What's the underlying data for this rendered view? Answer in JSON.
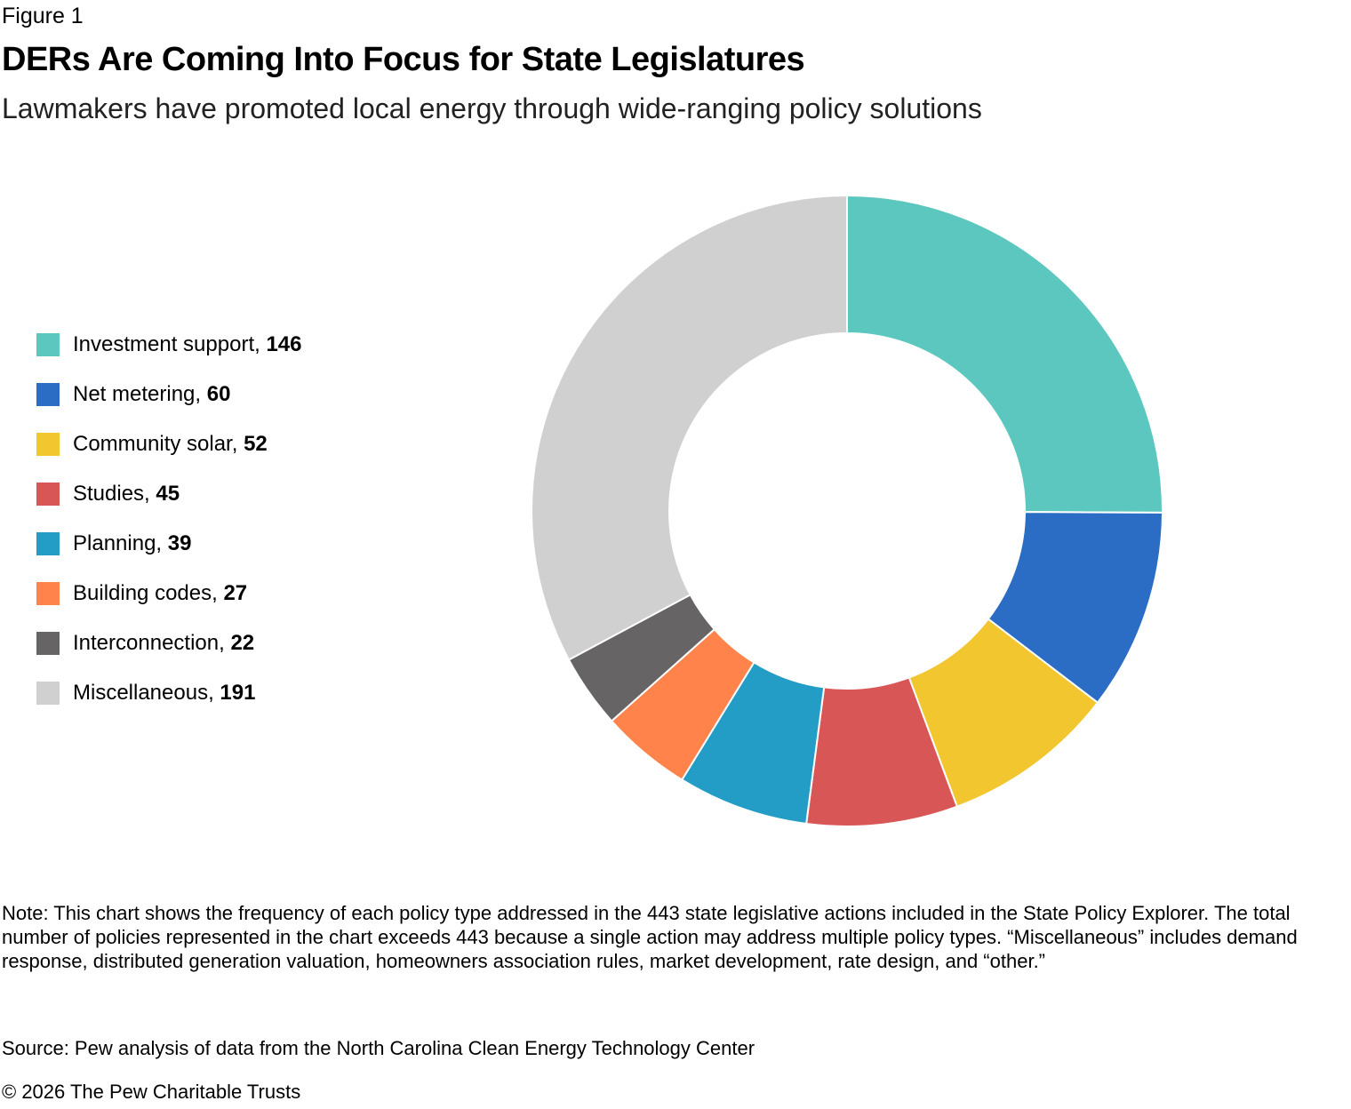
{
  "figure_label": "Figure 1",
  "chart_data": {
    "type": "pie",
    "donut": true,
    "title": "DERs Are Coming Into Focus for State Legislatures",
    "subtitle": "Lawmakers have promoted local energy through wide-ranging policy solutions",
    "legend_position": "left",
    "categories": [
      "Investment support",
      "Net metering",
      "Community solar",
      "Studies",
      "Planning",
      "Building codes",
      "Interconnection",
      "Miscellaneous"
    ],
    "values": [
      146,
      60,
      52,
      45,
      39,
      27,
      22,
      191
    ],
    "colors": [
      "#5BC7BE",
      "#2B6CC4",
      "#F2C62F",
      "#D95656",
      "#239DC6",
      "#FF834A",
      "#666465",
      "#D0D0D0"
    ]
  },
  "note": "Note: This chart shows the frequency of each policy type addressed in the 443 state legislative actions included in the State Policy Explorer. The total number of policies represented in the chart exceeds 443 because a single action may address multiple policy types. “Miscellaneous” includes demand response, distributed generation valuation, homeowners association rules, market development, rate design, and “other.”",
  "source": "Source: Pew analysis of data from the North Carolina Clean Energy Technology Center",
  "copyright": "© 2026 The Pew Charitable Trusts"
}
